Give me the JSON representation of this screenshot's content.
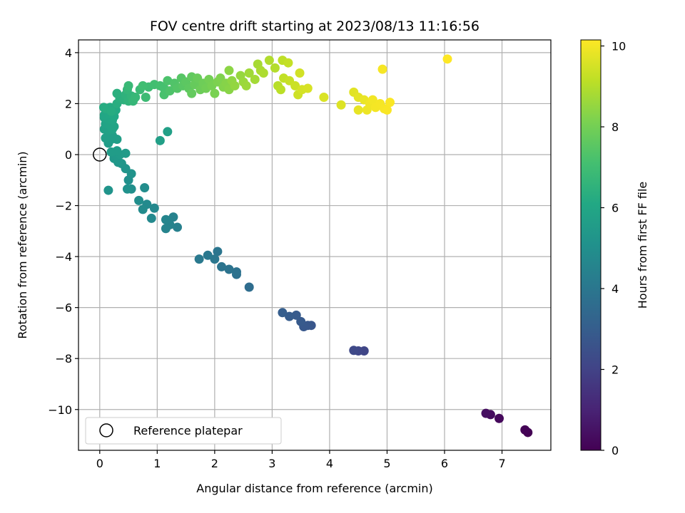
{
  "chart_data": {
    "type": "scatter",
    "title": "FOV centre drift starting at 2023/08/13 11:16:56",
    "xlabel": "Angular distance from reference (arcmin)",
    "ylabel": "Rotation from reference (arcmin)",
    "xlim": [
      -0.37,
      7.85
    ],
    "ylim": [
      -11.6,
      4.5
    ],
    "xticks": [
      0,
      1,
      2,
      3,
      4,
      5,
      6,
      7
    ],
    "yticks": [
      4,
      2,
      0,
      -2,
      -4,
      -6,
      -8,
      -10
    ],
    "grid": true,
    "colormap": "viridis",
    "colorbar": {
      "label": "Hours from first FF file",
      "range": [
        0,
        10.15
      ],
      "ticks": [
        0,
        2,
        4,
        6,
        8,
        10
      ]
    },
    "legend": {
      "placement": "lower-left",
      "entries": [
        "Reference platepar"
      ]
    },
    "reference_point": {
      "x": 0,
      "y": 0,
      "label": "Reference platepar"
    },
    "points": [
      {
        "x": 7.45,
        "y": -10.9,
        "h": 0.0
      },
      {
        "x": 7.4,
        "y": -10.8,
        "h": 0.05
      },
      {
        "x": 6.95,
        "y": -10.35,
        "h": 0.2
      },
      {
        "x": 6.8,
        "y": -10.2,
        "h": 0.3
      },
      {
        "x": 6.72,
        "y": -10.15,
        "h": 0.4
      },
      {
        "x": 4.6,
        "y": -7.7,
        "h": 2.1
      },
      {
        "x": 4.5,
        "y": -7.7,
        "h": 2.15
      },
      {
        "x": 4.42,
        "y": -7.68,
        "h": 2.2
      },
      {
        "x": 3.68,
        "y": -6.7,
        "h": 2.7
      },
      {
        "x": 3.62,
        "y": -6.7,
        "h": 2.75
      },
      {
        "x": 3.55,
        "y": -6.75,
        "h": 2.8
      },
      {
        "x": 3.5,
        "y": -6.55,
        "h": 2.85
      },
      {
        "x": 3.42,
        "y": -6.3,
        "h": 2.9
      },
      {
        "x": 3.3,
        "y": -6.35,
        "h": 2.95
      },
      {
        "x": 3.18,
        "y": -6.2,
        "h": 3.0
      },
      {
        "x": 2.6,
        "y": -5.2,
        "h": 3.6
      },
      {
        "x": 2.38,
        "y": -4.7,
        "h": 3.75
      },
      {
        "x": 2.38,
        "y": -4.6,
        "h": 3.8
      },
      {
        "x": 2.25,
        "y": -4.5,
        "h": 3.85
      },
      {
        "x": 2.12,
        "y": -4.4,
        "h": 3.9
      },
      {
        "x": 2.05,
        "y": -3.8,
        "h": 3.95
      },
      {
        "x": 2.0,
        "y": -4.1,
        "h": 4.0
      },
      {
        "x": 1.88,
        "y": -3.95,
        "h": 4.05
      },
      {
        "x": 1.73,
        "y": -4.1,
        "h": 4.1
      },
      {
        "x": 1.35,
        "y": -2.85,
        "h": 4.4
      },
      {
        "x": 1.28,
        "y": -2.45,
        "h": 4.45
      },
      {
        "x": 1.22,
        "y": -2.75,
        "h": 4.5
      },
      {
        "x": 1.15,
        "y": -2.9,
        "h": 4.55
      },
      {
        "x": 1.15,
        "y": -2.55,
        "h": 4.6
      },
      {
        "x": 0.95,
        "y": -2.1,
        "h": 4.7
      },
      {
        "x": 0.9,
        "y": -2.5,
        "h": 4.75
      },
      {
        "x": 0.82,
        "y": -1.95,
        "h": 4.8
      },
      {
        "x": 0.75,
        "y": -2.15,
        "h": 4.85
      },
      {
        "x": 0.78,
        "y": -1.3,
        "h": 4.9
      },
      {
        "x": 0.68,
        "y": -1.8,
        "h": 4.95
      },
      {
        "x": 0.55,
        "y": -1.35,
        "h": 5.0
      },
      {
        "x": 0.5,
        "y": -1.0,
        "h": 5.05
      },
      {
        "x": 0.48,
        "y": -1.35,
        "h": 5.1
      },
      {
        "x": 0.55,
        "y": -0.75,
        "h": 5.15
      },
      {
        "x": 0.15,
        "y": -1.4,
        "h": 5.2
      },
      {
        "x": 0.45,
        "y": -0.55,
        "h": 5.25
      },
      {
        "x": 0.38,
        "y": -0.35,
        "h": 5.3
      },
      {
        "x": 0.32,
        "y": -0.3,
        "h": 5.35
      },
      {
        "x": 0.25,
        "y": -0.15,
        "h": 5.4
      },
      {
        "x": 0.3,
        "y": -0.05,
        "h": 5.45
      },
      {
        "x": 0.45,
        "y": 0.05,
        "h": 5.5
      },
      {
        "x": 0.35,
        "y": 0.0,
        "h": 5.5
      },
      {
        "x": 0.3,
        "y": 0.15,
        "h": 5.55
      },
      {
        "x": 0.2,
        "y": 0.1,
        "h": 5.55
      },
      {
        "x": 0.15,
        "y": 0.45,
        "h": 5.6
      },
      {
        "x": 0.2,
        "y": 0.6,
        "h": 5.6
      },
      {
        "x": 0.3,
        "y": 0.6,
        "h": 5.65
      },
      {
        "x": 0.22,
        "y": 0.75,
        "h": 5.65
      },
      {
        "x": 0.1,
        "y": 0.65,
        "h": 5.7
      },
      {
        "x": 1.05,
        "y": 0.55,
        "h": 5.7
      },
      {
        "x": 1.18,
        "y": 0.9,
        "h": 5.75
      },
      {
        "x": 0.08,
        "y": 1.0,
        "h": 5.8
      },
      {
        "x": 0.15,
        "y": 0.95,
        "h": 5.8
      },
      {
        "x": 0.22,
        "y": 1.0,
        "h": 5.85
      },
      {
        "x": 0.1,
        "y": 1.2,
        "h": 5.85
      },
      {
        "x": 0.18,
        "y": 1.15,
        "h": 5.9
      },
      {
        "x": 0.25,
        "y": 1.1,
        "h": 5.9
      },
      {
        "x": 0.08,
        "y": 1.45,
        "h": 5.95
      },
      {
        "x": 0.15,
        "y": 1.4,
        "h": 5.95
      },
      {
        "x": 0.22,
        "y": 1.35,
        "h": 6.0
      },
      {
        "x": 0.08,
        "y": 1.55,
        "h": 6.0
      },
      {
        "x": 0.16,
        "y": 1.6,
        "h": 6.05
      },
      {
        "x": 0.25,
        "y": 1.5,
        "h": 6.1
      },
      {
        "x": 0.28,
        "y": 1.75,
        "h": 6.15
      },
      {
        "x": 0.1,
        "y": 1.8,
        "h": 6.2
      },
      {
        "x": 0.18,
        "y": 1.85,
        "h": 6.2
      },
      {
        "x": 0.07,
        "y": 1.85,
        "h": 6.25
      },
      {
        "x": 0.2,
        "y": 1.7,
        "h": 6.25
      },
      {
        "x": 0.3,
        "y": 2.0,
        "h": 6.3
      },
      {
        "x": 0.35,
        "y": 2.2,
        "h": 6.35
      },
      {
        "x": 0.3,
        "y": 2.4,
        "h": 6.4
      },
      {
        "x": 0.42,
        "y": 2.15,
        "h": 6.45
      },
      {
        "x": 0.45,
        "y": 2.35,
        "h": 6.5
      },
      {
        "x": 0.5,
        "y": 2.1,
        "h": 6.55
      },
      {
        "x": 0.55,
        "y": 2.3,
        "h": 6.6
      },
      {
        "x": 0.48,
        "y": 2.55,
        "h": 6.65
      },
      {
        "x": 0.58,
        "y": 2.1,
        "h": 6.7
      },
      {
        "x": 0.62,
        "y": 2.25,
        "h": 6.75
      },
      {
        "x": 0.5,
        "y": 2.7,
        "h": 6.8
      },
      {
        "x": 0.7,
        "y": 2.55,
        "h": 6.85
      },
      {
        "x": 0.8,
        "y": 2.25,
        "h": 6.9
      },
      {
        "x": 0.85,
        "y": 2.65,
        "h": 6.95
      },
      {
        "x": 0.75,
        "y": 2.7,
        "h": 7.0
      },
      {
        "x": 0.95,
        "y": 2.75,
        "h": 7.05
      },
      {
        "x": 1.05,
        "y": 2.7,
        "h": 7.1
      },
      {
        "x": 1.12,
        "y": 2.6,
        "h": 7.15
      },
      {
        "x": 1.12,
        "y": 2.35,
        "h": 7.2
      },
      {
        "x": 1.18,
        "y": 2.9,
        "h": 7.25
      },
      {
        "x": 1.22,
        "y": 2.5,
        "h": 7.3
      },
      {
        "x": 1.3,
        "y": 2.8,
        "h": 7.35
      },
      {
        "x": 1.35,
        "y": 2.6,
        "h": 7.4
      },
      {
        "x": 1.42,
        "y": 3.0,
        "h": 7.45
      },
      {
        "x": 1.45,
        "y": 2.7,
        "h": 7.5
      },
      {
        "x": 1.5,
        "y": 2.85,
        "h": 7.55
      },
      {
        "x": 1.55,
        "y": 2.6,
        "h": 7.6
      },
      {
        "x": 1.6,
        "y": 3.05,
        "h": 7.65
      },
      {
        "x": 1.6,
        "y": 2.4,
        "h": 7.7
      },
      {
        "x": 1.65,
        "y": 2.75,
        "h": 7.75
      },
      {
        "x": 1.7,
        "y": 3.0,
        "h": 7.8
      },
      {
        "x": 1.75,
        "y": 2.55,
        "h": 7.85
      },
      {
        "x": 1.8,
        "y": 2.8,
        "h": 7.9
      },
      {
        "x": 1.85,
        "y": 2.6,
        "h": 7.95
      },
      {
        "x": 1.9,
        "y": 2.95,
        "h": 8.0
      },
      {
        "x": 1.95,
        "y": 2.7,
        "h": 8.05
      },
      {
        "x": 2.0,
        "y": 2.4,
        "h": 8.1
      },
      {
        "x": 2.05,
        "y": 2.85,
        "h": 8.15
      },
      {
        "x": 2.1,
        "y": 3.0,
        "h": 8.2
      },
      {
        "x": 2.15,
        "y": 2.65,
        "h": 8.25
      },
      {
        "x": 2.2,
        "y": 2.8,
        "h": 8.3
      },
      {
        "x": 2.25,
        "y": 2.55,
        "h": 8.35
      },
      {
        "x": 2.25,
        "y": 3.3,
        "h": 8.4
      },
      {
        "x": 2.3,
        "y": 2.9,
        "h": 8.45
      },
      {
        "x": 2.35,
        "y": 2.7,
        "h": 8.5
      },
      {
        "x": 2.45,
        "y": 3.1,
        "h": 8.55
      },
      {
        "x": 2.5,
        "y": 2.85,
        "h": 8.6
      },
      {
        "x": 2.55,
        "y": 2.7,
        "h": 8.65
      },
      {
        "x": 2.6,
        "y": 3.2,
        "h": 8.7
      },
      {
        "x": 2.7,
        "y": 2.95,
        "h": 8.75
      },
      {
        "x": 2.75,
        "y": 3.55,
        "h": 8.8
      },
      {
        "x": 2.8,
        "y": 3.3,
        "h": 8.85
      },
      {
        "x": 2.85,
        "y": 3.2,
        "h": 8.9
      },
      {
        "x": 2.95,
        "y": 3.7,
        "h": 8.95
      },
      {
        "x": 3.05,
        "y": 3.4,
        "h": 9.0
      },
      {
        "x": 3.1,
        "y": 2.7,
        "h": 9.05
      },
      {
        "x": 3.15,
        "y": 2.55,
        "h": 9.1
      },
      {
        "x": 3.18,
        "y": 3.7,
        "h": 9.15
      },
      {
        "x": 3.2,
        "y": 3.0,
        "h": 9.2
      },
      {
        "x": 3.28,
        "y": 3.6,
        "h": 9.25
      },
      {
        "x": 3.3,
        "y": 2.9,
        "h": 9.3
      },
      {
        "x": 3.4,
        "y": 2.7,
        "h": 9.35
      },
      {
        "x": 3.45,
        "y": 2.35,
        "h": 9.4
      },
      {
        "x": 3.48,
        "y": 3.2,
        "h": 9.45
      },
      {
        "x": 3.52,
        "y": 2.55,
        "h": 9.5
      },
      {
        "x": 3.62,
        "y": 2.6,
        "h": 9.55
      },
      {
        "x": 3.9,
        "y": 2.25,
        "h": 9.6
      },
      {
        "x": 4.2,
        "y": 1.95,
        "h": 9.65
      },
      {
        "x": 4.42,
        "y": 2.45,
        "h": 9.7
      },
      {
        "x": 4.5,
        "y": 2.25,
        "h": 9.75
      },
      {
        "x": 4.5,
        "y": 1.75,
        "h": 9.8
      },
      {
        "x": 4.6,
        "y": 2.15,
        "h": 9.85
      },
      {
        "x": 4.65,
        "y": 1.75,
        "h": 9.9
      },
      {
        "x": 4.7,
        "y": 2.0,
        "h": 9.95
      },
      {
        "x": 4.75,
        "y": 2.15,
        "h": 9.97
      },
      {
        "x": 4.8,
        "y": 1.85,
        "h": 10.0
      },
      {
        "x": 4.88,
        "y": 2.0,
        "h": 10.02
      },
      {
        "x": 4.92,
        "y": 3.35,
        "h": 10.04
      },
      {
        "x": 4.95,
        "y": 1.8,
        "h": 10.06
      },
      {
        "x": 5.0,
        "y": 1.75,
        "h": 10.08
      },
      {
        "x": 5.05,
        "y": 2.05,
        "h": 10.1
      },
      {
        "x": 6.05,
        "y": 3.75,
        "h": 10.15
      }
    ]
  }
}
